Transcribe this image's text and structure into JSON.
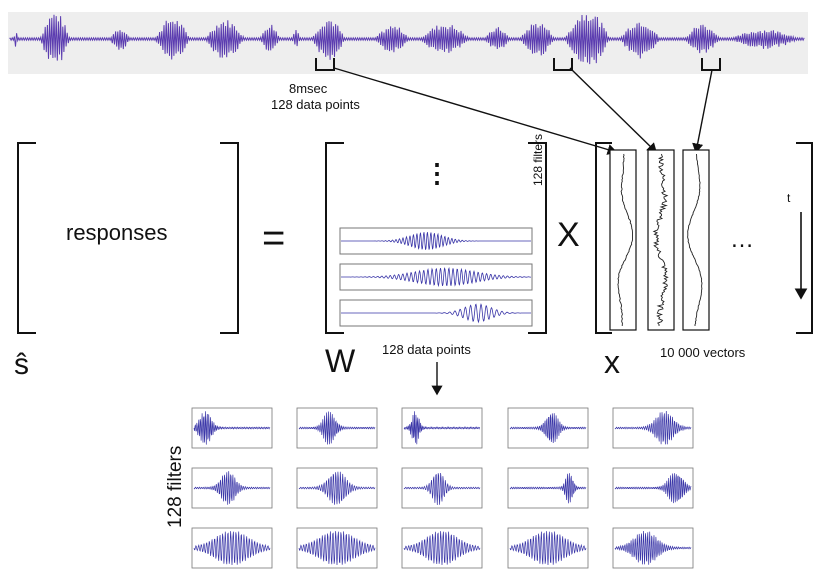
{
  "waveform": {
    "color": "#5b3cb0",
    "background": "#eeeeee"
  },
  "annotations": {
    "window_duration": "8msec",
    "window_points": "128 data points"
  },
  "equation": {
    "responses": "responses",
    "equals": "=",
    "times": "X",
    "dots_vertical": "⋮",
    "dots_horizontal": "…",
    "filters_label_vertical": "128 filters",
    "W_symbol": "W",
    "W_caption": "128 data points",
    "s_hat": "ŝ",
    "x_symbol": "x",
    "x_caption": "10 000 vectors",
    "time_label": "t"
  },
  "filter_grid": {
    "side_label": "128 filters",
    "rows": 3,
    "cols": 5
  },
  "colors": {
    "trace": "#3a36a8",
    "frame": "#777777",
    "ink": "#111111"
  }
}
